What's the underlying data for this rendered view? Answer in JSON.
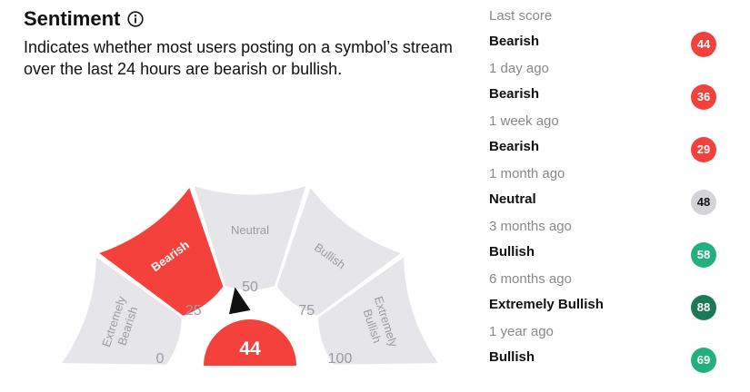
{
  "header": {
    "title": "Sentiment",
    "info_icon": "info-icon",
    "description": "Indicates whether most users posting on a symbol’s stream over the last 24 hours are bearish or bullish."
  },
  "gauge": {
    "value": 44,
    "active_segment": "bearish",
    "segments": [
      {
        "id": "extremely-bearish",
        "label_line1": "Extremely",
        "label_line2": "Bearish"
      },
      {
        "id": "bearish",
        "label_line1": "Bearish",
        "label_line2": ""
      },
      {
        "id": "neutral",
        "label_line1": "Neutral",
        "label_line2": ""
      },
      {
        "id": "bullish",
        "label_line1": "Bullish",
        "label_line2": ""
      },
      {
        "id": "extremely-bullish",
        "label_line1": "Extremely",
        "label_line2": "Bullish"
      }
    ],
    "ticks": [
      "0",
      "25",
      "50",
      "75",
      "100"
    ],
    "colors": {
      "active": "#f5413b",
      "inactive": "#e6e6ea",
      "inactive_text": "#9a9aa2",
      "active_text": "#ffffff"
    }
  },
  "history": [
    {
      "period": "Last score",
      "label": "Bearish",
      "score": "44",
      "color": "#f5413b"
    },
    {
      "period": "1 day ago",
      "label": "Bearish",
      "score": "36",
      "color": "#f5413b"
    },
    {
      "period": "1 week ago",
      "label": "Bearish",
      "score": "29",
      "color": "#f5413b"
    },
    {
      "period": "1 month ago",
      "label": "Neutral",
      "score": "48",
      "color": "#d4d4d8",
      "text_color": "#111111"
    },
    {
      "period": "3 months ago",
      "label": "Bullish",
      "score": "58",
      "color": "#22b07d"
    },
    {
      "period": "6 months ago",
      "label": "Extremely Bullish",
      "score": "88",
      "color": "#1a7a55"
    },
    {
      "period": "1 year ago",
      "label": "Bullish",
      "score": "69",
      "color": "#22b07d"
    }
  ]
}
